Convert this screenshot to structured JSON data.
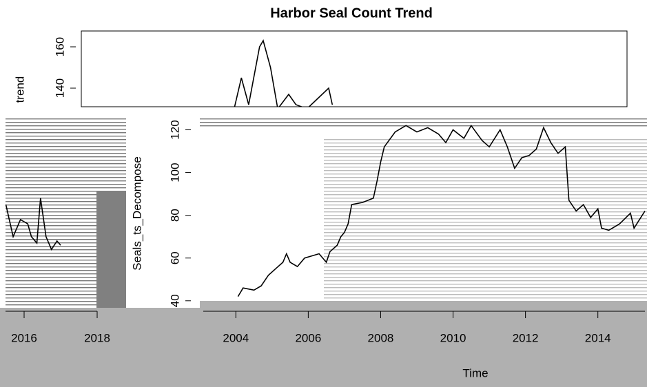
{
  "chart_data": [
    {
      "type": "line",
      "title": "Harbor Seal Count Trend",
      "y_label": "trend",
      "x": [
        2004.2,
        2004.4,
        2004.6,
        2004.9,
        2005.0,
        2005.2,
        2005.4,
        2005.7,
        2005.9,
        2006.2,
        2006.5,
        2006.8,
        2006.9
      ],
      "values": [
        130,
        145,
        132,
        160,
        163,
        150,
        130,
        137,
        132,
        130,
        135,
        140,
        132
      ],
      "color": "#000000",
      "xlim": [
        2000,
        2015
      ],
      "ylim": [
        128,
        168
      ],
      "yticks": [
        140,
        160
      ]
    },
    {
      "type": "line",
      "y_label": "Seals_ts_Decompose",
      "x_label": "Time",
      "x": [
        2004.06,
        2004.2,
        2004.5,
        2004.7,
        2004.9,
        2005.1,
        2005.3,
        2005.4,
        2005.5,
        2005.7,
        2005.9,
        2006.1,
        2006.3,
        2006.5,
        2006.6,
        2006.8,
        2006.9,
        2007.0,
        2007.1,
        2007.2,
        2007.5,
        2007.8,
        2007.9,
        2008.0,
        2008.1,
        2008.4,
        2008.7,
        2009.0,
        2009.3,
        2009.6,
        2009.8,
        2010.0,
        2010.3,
        2010.5,
        2010.8,
        2011.0,
        2011.3,
        2011.5,
        2011.7,
        2011.9,
        2012.1,
        2012.3,
        2012.5,
        2012.7,
        2012.9,
        2013.1,
        2013.2,
        2013.4,
        2013.6,
        2013.8,
        2014.0,
        2014.1,
        2014.3,
        2014.6,
        2014.9,
        2015.0,
        2015.3
      ],
      "values": [
        42,
        46,
        45,
        47,
        52,
        55,
        58,
        62,
        58,
        56,
        60,
        61,
        62,
        58,
        63,
        66,
        70,
        72,
        76,
        85,
        86,
        88,
        96,
        105,
        112,
        119,
        122,
        119,
        121,
        118,
        114,
        120,
        116,
        122,
        115,
        112,
        120,
        112,
        102,
        107,
        108,
        111,
        121,
        114,
        109,
        112,
        87,
        82,
        85,
        79,
        83,
        74,
        73,
        76,
        81,
        74,
        82
      ],
      "color": "#000000",
      "xlim": [
        2003.1,
        2015.3
      ],
      "ylim": [
        38,
        125
      ],
      "xticks": [
        2004,
        2006,
        2008,
        2010,
        2012,
        2014
      ],
      "yticks": [
        40,
        60,
        80,
        100,
        120
      ]
    },
    {
      "type": "line",
      "x": [
        2015.5,
        2015.7,
        2015.9,
        2016.1,
        2016.2,
        2016.35,
        2016.45,
        2016.6,
        2016.75,
        2016.9,
        2017.0
      ],
      "values": [
        85,
        70,
        78,
        76,
        70,
        67,
        88,
        70,
        64,
        68,
        66
      ],
      "color": "#000000",
      "xlim": [
        2015.34,
        2018
      ],
      "ylim": [
        38,
        125
      ],
      "xticks": [
        2016,
        2018
      ]
    }
  ]
}
